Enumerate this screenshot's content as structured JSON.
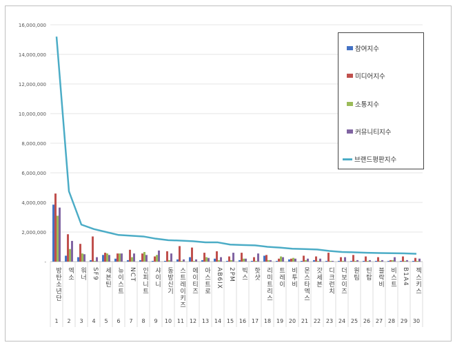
{
  "chart_data": {
    "type": "bar+line",
    "categories": [
      "방탄소년단",
      "엑소",
      "워너",
      "SF9",
      "세븐틴",
      "뉴이스트",
      "NCT",
      "인피니트",
      "샤이니",
      "동방신기",
      "스트레이키즈",
      "에이티즈",
      "아스트로",
      "AB6IX",
      "2PM",
      "빅스",
      "핫샷",
      "리미트리스",
      "트레이",
      "비투비",
      "몬스타엑스",
      "갓세븐",
      "디크런치",
      "더보이즈",
      "원팀",
      "틴탑",
      "블락비",
      "비스트",
      "B1A4",
      "젝스키스"
    ],
    "ranks": [
      "1",
      "2",
      "3",
      "4",
      "5",
      "6",
      "7",
      "8",
      "9",
      "10",
      "11",
      "12",
      "13",
      "14",
      "15",
      "16",
      "17",
      "18",
      "19",
      "20",
      "21",
      "22",
      "23",
      "24",
      "25",
      "26",
      "27",
      "28",
      "29",
      "30"
    ],
    "yticks": [
      "-",
      "2,000,000",
      "4,000,000",
      "6,000,000",
      "8,000,000",
      "10,000,000",
      "12,000,000",
      "14,000,000",
      "16,000,000"
    ],
    "ylim": [
      0,
      16000000
    ],
    "grid": true,
    "legend_position": "right",
    "series": [
      {
        "name": "참여지수",
        "type": "bar",
        "color": "#4472c4",
        "values": [
          3850000,
          400000,
          300000,
          100000,
          450000,
          200000,
          100000,
          100000,
          50000,
          50000,
          150000,
          300000,
          100000,
          200000,
          50000,
          100000,
          50000,
          400000,
          50000,
          150000,
          50000,
          100000,
          50000,
          50000,
          50000,
          50000,
          50000,
          50000,
          50000,
          50000
        ]
      },
      {
        "name": "미디어지수",
        "type": "bar",
        "color": "#c0504d",
        "values": [
          4600000,
          1850000,
          1200000,
          1700000,
          600000,
          550000,
          800000,
          550000,
          350000,
          700000,
          1050000,
          950000,
          600000,
          700000,
          350000,
          600000,
          300000,
          450000,
          200000,
          200000,
          400000,
          350000,
          600000,
          300000,
          450000,
          350000,
          300000,
          100000,
          350000,
          250000
        ]
      },
      {
        "name": "소통지수",
        "type": "bar",
        "color": "#9bbb59",
        "values": [
          3100000,
          850000,
          550000,
          50000,
          550000,
          550000,
          300000,
          650000,
          450000,
          100000,
          50000,
          50000,
          300000,
          100000,
          100000,
          200000,
          50000,
          100000,
          350000,
          250000,
          100000,
          50000,
          50000,
          50000,
          50000,
          50000,
          50000,
          100000,
          50000,
          50000
        ]
      },
      {
        "name": "커뮤니티지수",
        "type": "bar",
        "color": "#8064a2",
        "values": [
          3650000,
          1400000,
          500000,
          300000,
          450000,
          550000,
          550000,
          450000,
          750000,
          550000,
          150000,
          150000,
          250000,
          300000,
          600000,
          200000,
          550000,
          100000,
          300000,
          200000,
          200000,
          200000,
          50000,
          300000,
          100000,
          100000,
          100000,
          300000,
          100000,
          200000
        ]
      },
      {
        "name": "브랜드평판지수",
        "type": "line",
        "color": "#4bacc6",
        "values": [
          15200000,
          4750000,
          2500000,
          2200000,
          2000000,
          1800000,
          1750000,
          1700000,
          1550000,
          1450000,
          1420000,
          1380000,
          1300000,
          1300000,
          1150000,
          1120000,
          1100000,
          1000000,
          950000,
          870000,
          850000,
          820000,
          720000,
          650000,
          630000,
          600000,
          580000,
          570000,
          560000,
          530000
        ]
      }
    ]
  }
}
